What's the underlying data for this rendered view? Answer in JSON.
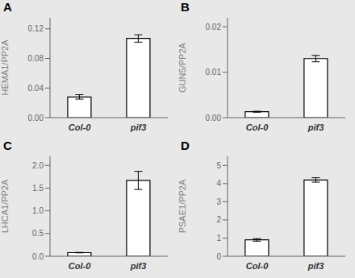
{
  "chart_data": [
    {
      "type": "bar",
      "title": "A",
      "ylabel": "HEMA1/PP2A",
      "categories": [
        "Col-0",
        "pif3"
      ],
      "values": [
        0.028,
        0.107
      ],
      "errors": [
        0.003,
        0.005
      ],
      "ylim": [
        0,
        0.135
      ],
      "yticks": [
        {
          "value": 0,
          "label": "0.00"
        },
        0.04,
        0.08,
        0.12
      ],
      "color": "white"
    },
    {
      "type": "bar",
      "title": "B",
      "ylabel": "GUN5/PP2A",
      "categories": [
        "Col-0",
        "pif3"
      ],
      "values": [
        0.0013,
        0.013
      ],
      "errors": [
        0.0001,
        0.0007
      ],
      "ylim": [
        0,
        0.022
      ],
      "yticks": [
        {
          "value": 0,
          "label": "0.00"
        },
        0.01,
        0.02
      ],
      "color": "white"
    },
    {
      "type": "bar",
      "title": "C",
      "ylabel": "LHCA1/PP2A",
      "categories": [
        "Col-0",
        "pif3"
      ],
      "values": [
        0.08,
        1.67
      ],
      "errors": [
        0.005,
        0.2
      ],
      "ylim": [
        0,
        2.2
      ],
      "yticks": [
        {
          "value": 0,
          "label": "0.0"
        },
        0.5,
        {
          "value": 1,
          "label": "1.0"
        },
        1.5,
        {
          "value": 2,
          "label": "2.0"
        }
      ],
      "color": "white"
    },
    {
      "type": "bar",
      "title": "D",
      "ylabel": "PSAE1/PP2A",
      "categories": [
        "Col-0",
        "pif3"
      ],
      "values": [
        0.9,
        4.2
      ],
      "errors": [
        0.07,
        0.12
      ],
      "ylim": [
        0,
        5.5
      ],
      "yticks": [
        0,
        1,
        2,
        3,
        4,
        5
      ],
      "color": "white"
    }
  ]
}
